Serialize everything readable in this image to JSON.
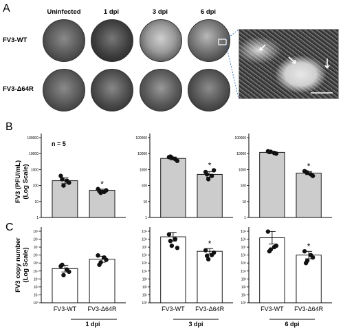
{
  "panel_letters": {
    "a": "A",
    "b": "B",
    "c": "C"
  },
  "panel_a": {
    "columns": [
      "Uninfected",
      "1 dpi",
      "3 dpi",
      "6 dpi"
    ],
    "rows": [
      "FV3-WT",
      "FV3-Δ64R"
    ]
  },
  "panel_b": {
    "ylabel": "FV3 (PFU/mL) (Log Scale)",
    "ylabel_line1": "FV3 (PFU/mL)",
    "ylabel_line2": "(Log Scale)",
    "n_label": "n = 5",
    "star": "*"
  },
  "panel_c": {
    "ylabel": "FV3 copy number (Log Scale)",
    "ylabel_line1": "FV3 copy number",
    "ylabel_line2": "(Log Scale)",
    "star": "*"
  },
  "groups": [
    "1 dpi",
    "3 dpi",
    "6 dpi"
  ],
  "categories": [
    "FV3-WT",
    "FV3-Δ64R"
  ],
  "chart_data": [
    {
      "type": "bar",
      "panel": "B",
      "group": "1 dpi",
      "categories": [
        "FV3-WT",
        "FV3-Δ64R"
      ],
      "values": [
        200,
        50
      ],
      "points": [
        [
          400,
          200,
          100,
          150,
          250
        ],
        [
          60,
          40,
          35,
          50,
          45
        ]
      ],
      "ticks": [
        "1",
        "10",
        "100",
        "1000",
        "10000",
        "100000"
      ],
      "ylim": [
        1,
        100000
      ],
      "yscale": "log",
      "significance": [
        false,
        true
      ]
    },
    {
      "type": "bar",
      "panel": "B",
      "group": "3 dpi",
      "categories": [
        "FV3-WT",
        "FV3-Δ64R"
      ],
      "values": [
        5000,
        500
      ],
      "points": [
        [
          6000,
          4500,
          5500,
          3500,
          6500
        ],
        [
          700,
          400,
          250,
          900,
          500
        ]
      ],
      "ticks": [
        "1",
        "10",
        "100",
        "1000",
        "10000",
        "100000"
      ],
      "ylim": [
        1,
        100000
      ],
      "yscale": "log",
      "significance": [
        false,
        true
      ]
    },
    {
      "type": "bar",
      "panel": "B",
      "group": "6 dpi",
      "categories": [
        "FV3-WT",
        "FV3-Δ64R"
      ],
      "values": [
        12000,
        600
      ],
      "points": [
        [
          14000,
          11000,
          13000,
          10000,
          12500
        ],
        [
          800,
          500,
          650,
          400,
          700
        ]
      ],
      "ticks": [
        "1",
        "10",
        "100",
        "1000",
        "10000",
        "100000"
      ],
      "ylim": [
        1,
        100000
      ],
      "yscale": "log",
      "significance": [
        false,
        true
      ]
    },
    {
      "type": "bar",
      "panel": "C",
      "group": "1 dpi",
      "categories": [
        "FV3-WT",
        "FV3-Δ64R"
      ],
      "values": [
        20000,
        300000
      ],
      "points": [
        [
          40000,
          15000,
          3000,
          8000,
          60000
        ],
        [
          900000,
          500000,
          120000,
          250000,
          60000
        ]
      ],
      "ticks": [
        "10⁰",
        "10¹",
        "10²",
        "10³",
        "10⁴",
        "10⁵",
        "10⁶",
        "10⁷",
        "10⁸",
        "10⁹"
      ],
      "ylim": [
        1,
        1000000000
      ],
      "yscale": "log",
      "significance": [
        false,
        false
      ]
    },
    {
      "type": "bar",
      "panel": "C",
      "group": "3 dpi",
      "categories": [
        "FV3-WT",
        "FV3-Δ64R"
      ],
      "values": [
        200000000,
        3000000
      ],
      "points": [
        [
          400000000,
          100000000,
          15000000,
          8000000,
          60000000
        ],
        [
          4000000,
          1000000,
          300000,
          2000000,
          800000
        ]
      ],
      "ticks": [
        "10⁰",
        "10¹",
        "10²",
        "10³",
        "10⁴",
        "10⁵",
        "10⁶",
        "10⁷",
        "10⁸",
        "10⁹"
      ],
      "ylim": [
        1,
        1000000000
      ],
      "yscale": "log",
      "significance": [
        false,
        true
      ]
    },
    {
      "type": "bar",
      "panel": "C",
      "group": "6 dpi",
      "categories": [
        "FV3-WT",
        "FV3-Δ64R"
      ],
      "values": [
        150000000,
        1000000
      ],
      "points": [
        [
          900000000,
          10000000,
          5000000,
          15000000,
          3000000
        ],
        [
          3000000,
          1000000,
          200000,
          500000,
          100000
        ]
      ],
      "ticks": [
        "10⁰",
        "10¹",
        "10²",
        "10³",
        "10⁴",
        "10⁵",
        "10⁶",
        "10⁷",
        "10⁸",
        "10⁹"
      ],
      "ylim": [
        1,
        1000000000
      ],
      "yscale": "log",
      "significance": [
        false,
        true
      ]
    }
  ]
}
